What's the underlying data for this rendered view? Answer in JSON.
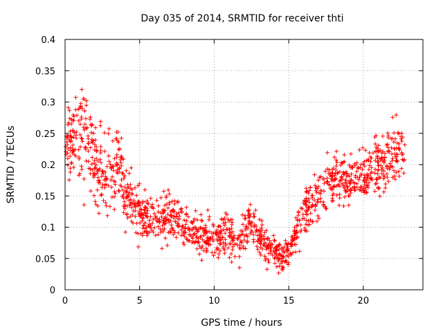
{
  "chart_data": {
    "type": "scatter",
    "title": "Day 035 of 2014, SRMTID for receiver thti",
    "xlabel": "GPS time / hours",
    "ylabel": "SRMTID / TECUs",
    "xlim": [
      0,
      24
    ],
    "ylim": [
      0,
      0.4
    ],
    "xticks": [
      0,
      5,
      10,
      15,
      20
    ],
    "xtick_labels": [
      "0",
      "5",
      "10",
      "15",
      "20"
    ],
    "yticks": [
      0,
      0.05,
      0.1,
      0.15,
      0.2,
      0.25,
      0.3,
      0.35,
      0.4
    ],
    "ytick_labels": [
      "0",
      "0.05",
      "0.1",
      "0.15",
      "0.2",
      "0.25",
      "0.3",
      "0.35",
      "0.4"
    ],
    "grid": true,
    "marker": "plus",
    "marker_color": "#ff0000",
    "point_data_range_hours": [
      0,
      22.8
    ],
    "trend": [
      {
        "x": 0.0,
        "y": 0.22,
        "spread": 0.06
      },
      {
        "x": 0.5,
        "y": 0.24,
        "spread": 0.08
      },
      {
        "x": 1.0,
        "y": 0.26,
        "spread": 0.09
      },
      {
        "x": 1.5,
        "y": 0.23,
        "spread": 0.09
      },
      {
        "x": 2.0,
        "y": 0.2,
        "spread": 0.09
      },
      {
        "x": 3.0,
        "y": 0.18,
        "spread": 0.08
      },
      {
        "x": 3.6,
        "y": 0.22,
        "spread": 0.08
      },
      {
        "x": 4.0,
        "y": 0.15,
        "spread": 0.06
      },
      {
        "x": 5.0,
        "y": 0.12,
        "spread": 0.05
      },
      {
        "x": 6.0,
        "y": 0.11,
        "spread": 0.05
      },
      {
        "x": 7.0,
        "y": 0.12,
        "spread": 0.05
      },
      {
        "x": 8.0,
        "y": 0.1,
        "spread": 0.04
      },
      {
        "x": 9.0,
        "y": 0.09,
        "spread": 0.04
      },
      {
        "x": 10.0,
        "y": 0.08,
        "spread": 0.04
      },
      {
        "x": 11.0,
        "y": 0.1,
        "spread": 0.05
      },
      {
        "x": 11.5,
        "y": 0.07,
        "spread": 0.04
      },
      {
        "x": 12.5,
        "y": 0.11,
        "spread": 0.05
      },
      {
        "x": 13.5,
        "y": 0.07,
        "spread": 0.035
      },
      {
        "x": 14.5,
        "y": 0.05,
        "spread": 0.025
      },
      {
        "x": 15.0,
        "y": 0.06,
        "spread": 0.03
      },
      {
        "x": 16.0,
        "y": 0.12,
        "spread": 0.05
      },
      {
        "x": 17.0,
        "y": 0.15,
        "spread": 0.05
      },
      {
        "x": 18.0,
        "y": 0.18,
        "spread": 0.05
      },
      {
        "x": 19.0,
        "y": 0.17,
        "spread": 0.05
      },
      {
        "x": 20.0,
        "y": 0.18,
        "spread": 0.05
      },
      {
        "x": 21.0,
        "y": 0.2,
        "spread": 0.06
      },
      {
        "x": 22.0,
        "y": 0.22,
        "spread": 0.07
      },
      {
        "x": 22.8,
        "y": 0.22,
        "spread": 0.05
      }
    ],
    "n_points": 1400
  }
}
